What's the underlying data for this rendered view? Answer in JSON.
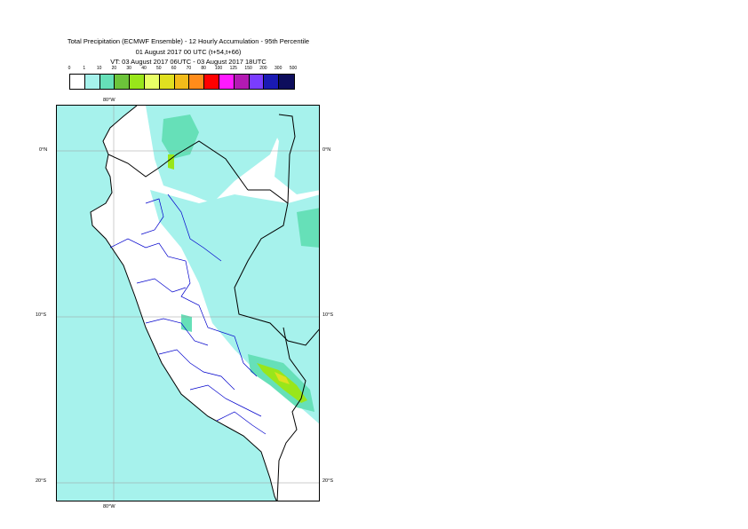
{
  "header": {
    "title": "Total Precipitation (ECMWF Ensemble) - 12 Hourly Accumulation - 95th Percentile",
    "base_time": "01 August 2017 00 UTC (t+54,t+66)",
    "valid_time": "VT: 03 August 2017 06UTC - 03 August 2017 18UTC"
  },
  "legend": {
    "thresholds": [
      "0",
      "1",
      "10",
      "20",
      "30",
      "40",
      "50",
      "60",
      "70",
      "80",
      "100",
      "125",
      "150",
      "200",
      "300",
      "500"
    ],
    "colors": [
      "#ffffff",
      "#a6f2ec",
      "#66e0b8",
      "#6cc43a",
      "#99e61a",
      "#e8ff66",
      "#e0e020",
      "#f2bb1a",
      "#ff8c1a",
      "#ff0000",
      "#ff1aff",
      "#b31ab3",
      "#7a3dff",
      "#1a1ab3",
      "#0d0d5c"
    ]
  },
  "map": {
    "lon_labels": {
      "top": "80°W",
      "bottom": "80°W"
    },
    "lat_labels": [
      {
        "left": "0°N",
        "right": "0°N"
      },
      {
        "left": "10°S",
        "right": "10°S"
      },
      {
        "left": "20°S",
        "right": "20°S"
      }
    ],
    "colors": {
      "ocean": "#a6f2ec",
      "land_low": "#ffffff",
      "moderate": "#66e0b8",
      "heavy": "#99e61a",
      "peak": "#e0e020",
      "coast": "#000000",
      "region_border": "#0000cc",
      "grid": "#9a9a9a"
    }
  }
}
